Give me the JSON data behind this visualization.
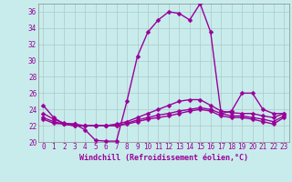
{
  "xlabel": "Windchill (Refroidissement éolien,°C)",
  "x_values": [
    0,
    1,
    2,
    3,
    4,
    5,
    6,
    7,
    8,
    9,
    10,
    11,
    12,
    13,
    14,
    15,
    16,
    17,
    18,
    19,
    20,
    21,
    22,
    23
  ],
  "series1": [
    24.5,
    23.0,
    22.2,
    22.2,
    21.5,
    20.2,
    20.1,
    20.1,
    25.0,
    30.5,
    33.5,
    35.0,
    36.0,
    35.8,
    35.0,
    37.0,
    33.5,
    23.5,
    23.8,
    26.0,
    26.0,
    24.0,
    23.5,
    23.5
  ],
  "series2": [
    23.5,
    22.8,
    22.3,
    22.2,
    22.0,
    22.0,
    22.0,
    22.2,
    22.5,
    23.0,
    23.5,
    24.0,
    24.5,
    25.0,
    25.2,
    25.2,
    24.5,
    23.8,
    23.6,
    23.5,
    23.5,
    23.2,
    23.0,
    23.5
  ],
  "series3": [
    23.0,
    22.5,
    22.2,
    22.0,
    22.0,
    22.0,
    22.0,
    22.0,
    22.3,
    22.7,
    23.0,
    23.3,
    23.5,
    23.8,
    24.0,
    24.2,
    24.0,
    23.5,
    23.2,
    23.2,
    23.0,
    22.8,
    22.5,
    23.2
  ],
  "series4": [
    22.8,
    22.3,
    22.2,
    22.0,
    22.0,
    22.0,
    22.0,
    22.0,
    22.2,
    22.5,
    22.8,
    23.0,
    23.2,
    23.5,
    23.8,
    24.0,
    23.8,
    23.2,
    23.0,
    23.0,
    22.8,
    22.5,
    22.2,
    23.0
  ],
  "line_color": "#990099",
  "bg_color": "#c8ecec",
  "grid_color": "#b0c8c8",
  "ylim": [
    20,
    37
  ],
  "yticks": [
    20,
    22,
    24,
    26,
    28,
    30,
    32,
    34,
    36
  ],
  "xlim": [
    -0.5,
    23.5
  ],
  "markersize": 2.5,
  "linewidth": 1.0,
  "tick_fontsize": 5.5,
  "xlabel_fontsize": 6.0
}
